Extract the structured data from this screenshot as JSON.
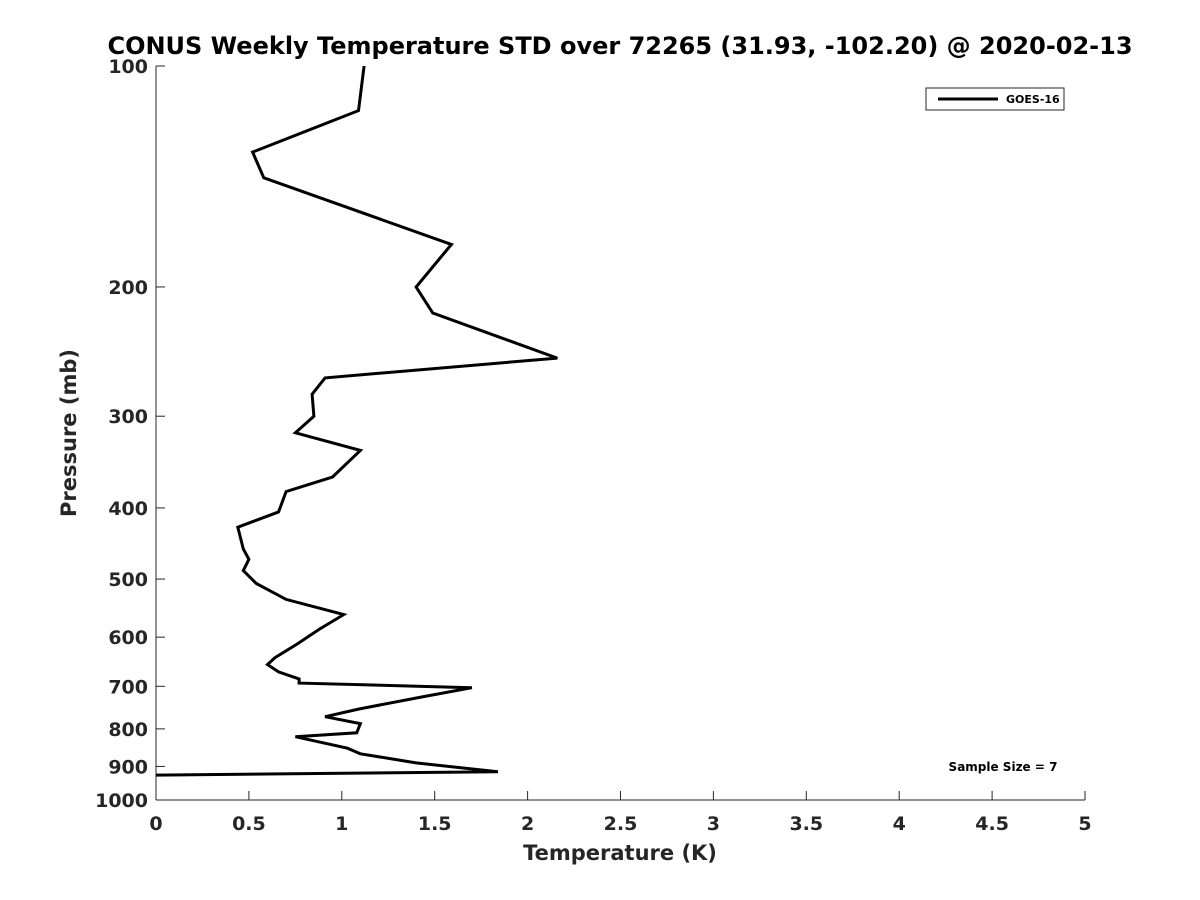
{
  "chart_data": {
    "type": "line",
    "title": "CONUS Weekly Temperature STD over 72265 (31.93, -102.20) @ 2020-02-13",
    "xlabel": "Temperature (K)",
    "ylabel": "Pressure (mb)",
    "xlim": [
      0,
      5
    ],
    "ylim": [
      100,
      1000
    ],
    "y_scale": "log",
    "y_reversed": true,
    "x_ticks": [
      0,
      0.5,
      1,
      1.5,
      2,
      2.5,
      3,
      3.5,
      4,
      4.5,
      5
    ],
    "x_tick_labels": [
      "0",
      "0.5",
      "1",
      "1.5",
      "2",
      "2.5",
      "3",
      "3.5",
      "4",
      "4.5",
      "5"
    ],
    "y_ticks": [
      100,
      200,
      300,
      400,
      500,
      600,
      700,
      800,
      900,
      1000
    ],
    "y_tick_labels": [
      "100",
      "200",
      "300",
      "400",
      "500",
      "600",
      "700",
      "800",
      "900",
      "1000"
    ],
    "grid": false,
    "legend_position": "top-right",
    "series": [
      {
        "name": "GOES-16",
        "color": "#000000",
        "x": [
          1.12,
          1.09,
          0.52,
          0.58,
          1.59,
          1.4,
          1.49,
          2.16,
          0.91,
          0.84,
          0.85,
          0.75,
          1.1,
          0.95,
          0.7,
          0.66,
          0.44,
          0.47,
          0.5,
          0.47,
          0.54,
          0.7,
          1.01,
          0.88,
          0.76,
          0.64,
          0.6,
          0.66,
          0.77,
          0.77,
          1.7,
          1.44,
          1.09,
          0.91,
          1.1,
          1.08,
          0.75,
          1.03,
          1.1,
          1.4,
          1.84,
          0.0
        ],
        "y": [
          100,
          115,
          131,
          142,
          175,
          200,
          217,
          250,
          266,
          280,
          300,
          316,
          334,
          363,
          380,
          405,
          425,
          455,
          470,
          487,
          507,
          533,
          559,
          585,
          613,
          640,
          654,
          669,
          684,
          693,
          703,
          723,
          752,
          770,
          787,
          810,
          820,
          850,
          865,
          890,
          915,
          925
        ]
      }
    ],
    "annotation": "Sample Size = 7"
  }
}
